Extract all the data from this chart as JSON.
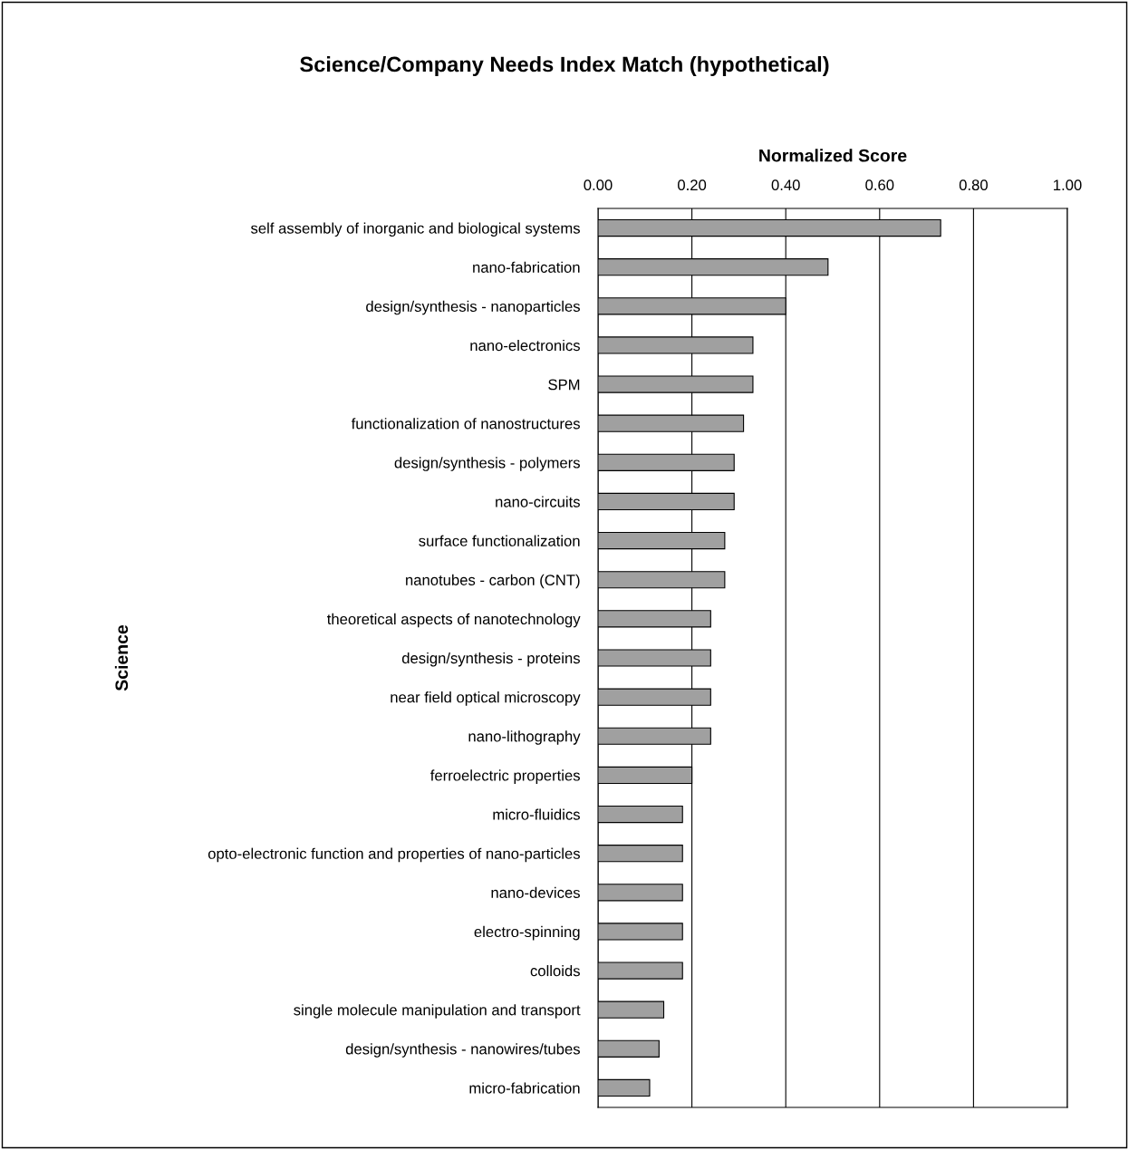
{
  "chart_data": {
    "type": "bar",
    "orientation": "horizontal",
    "title": "Science/Company Needs Index Match (hypothetical)",
    "xlabel": "Normalized Score",
    "ylabel": "Science",
    "categories": [
      "self assembly of inorganic and biological systems",
      "nano-fabrication",
      "design/synthesis - nanoparticles",
      "nano-electronics",
      "SPM",
      "functionalization of nanostructures",
      "design/synthesis - polymers",
      "nano-circuits",
      "surface functionalization",
      "nanotubes - carbon (CNT)",
      "theoretical aspects of nanotechnology",
      "design/synthesis - proteins",
      "near field optical microscopy",
      "nano-lithography",
      "ferroelectric properties",
      "micro-fluidics",
      "opto-electronic function and properties of nano-particles",
      "nano-devices",
      "electro-spinning",
      "colloids",
      "single molecule manipulation and transport",
      "design/synthesis - nanowires/tubes",
      "micro-fabrication"
    ],
    "values": [
      0.73,
      0.49,
      0.4,
      0.33,
      0.33,
      0.31,
      0.29,
      0.29,
      0.27,
      0.27,
      0.24,
      0.24,
      0.24,
      0.24,
      0.2,
      0.18,
      0.18,
      0.18,
      0.18,
      0.18,
      0.14,
      0.13,
      0.11
    ],
    "color": "#a0a0a0",
    "xlim": [
      0,
      1
    ],
    "xticks": [
      {
        "value": 0,
        "label": "0.00"
      },
      {
        "value": 0.2,
        "label": "0.20"
      },
      {
        "value": 0.4,
        "label": "0.40"
      },
      {
        "value": 0.6,
        "label": "0.60"
      },
      {
        "value": 0.8,
        "label": "0.80"
      },
      {
        "value": 1,
        "label": "1.00"
      }
    ],
    "grid": "x",
    "legend": false
  }
}
